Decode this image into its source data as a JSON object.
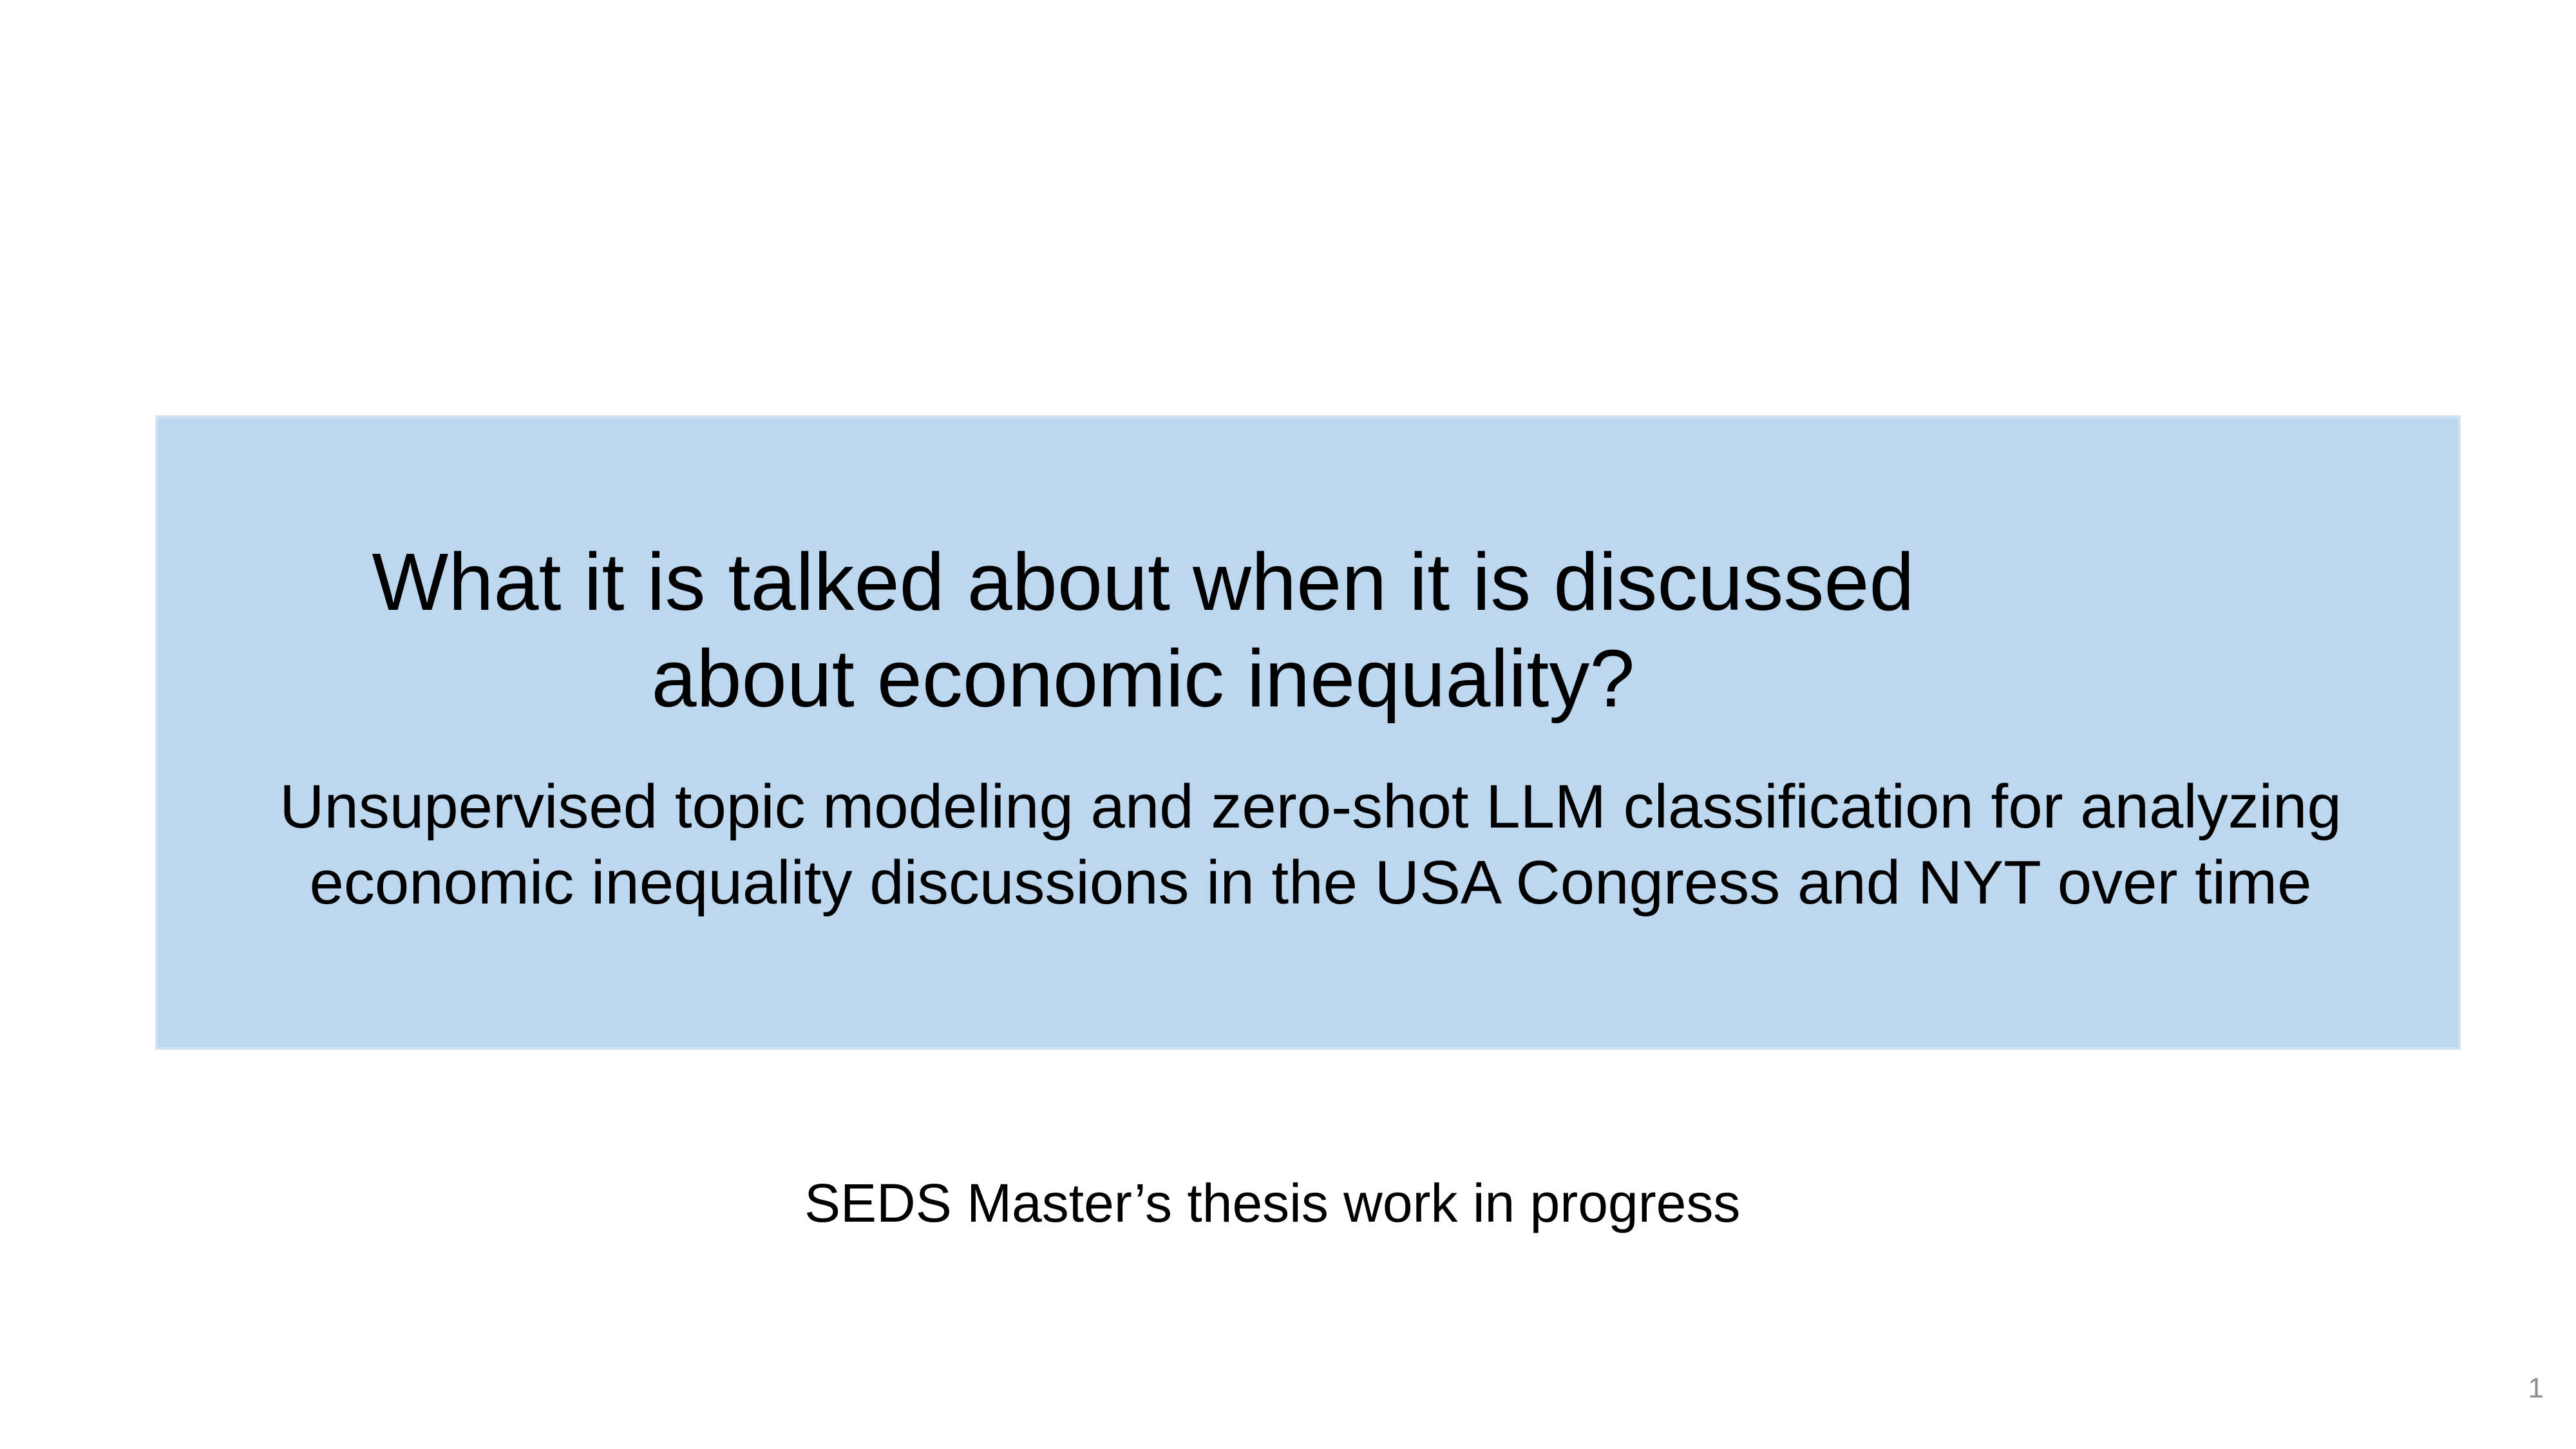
{
  "slide": {
    "title_lines": [
      "What it is talked about when it is discussed",
      "about economic inequality?"
    ],
    "subtitle_lines": [
      "Unsupervised topic modeling and zero-shot LLM classification for analyzing",
      "economic inequality discussions in the USA Congress and NYT over time"
    ],
    "note": "SEDS Master’s thesis work in progress",
    "page_number": "1"
  },
  "colors": {
    "title_box_fill": "#bdd7ee",
    "page_number_text": "#8c8c8c"
  }
}
